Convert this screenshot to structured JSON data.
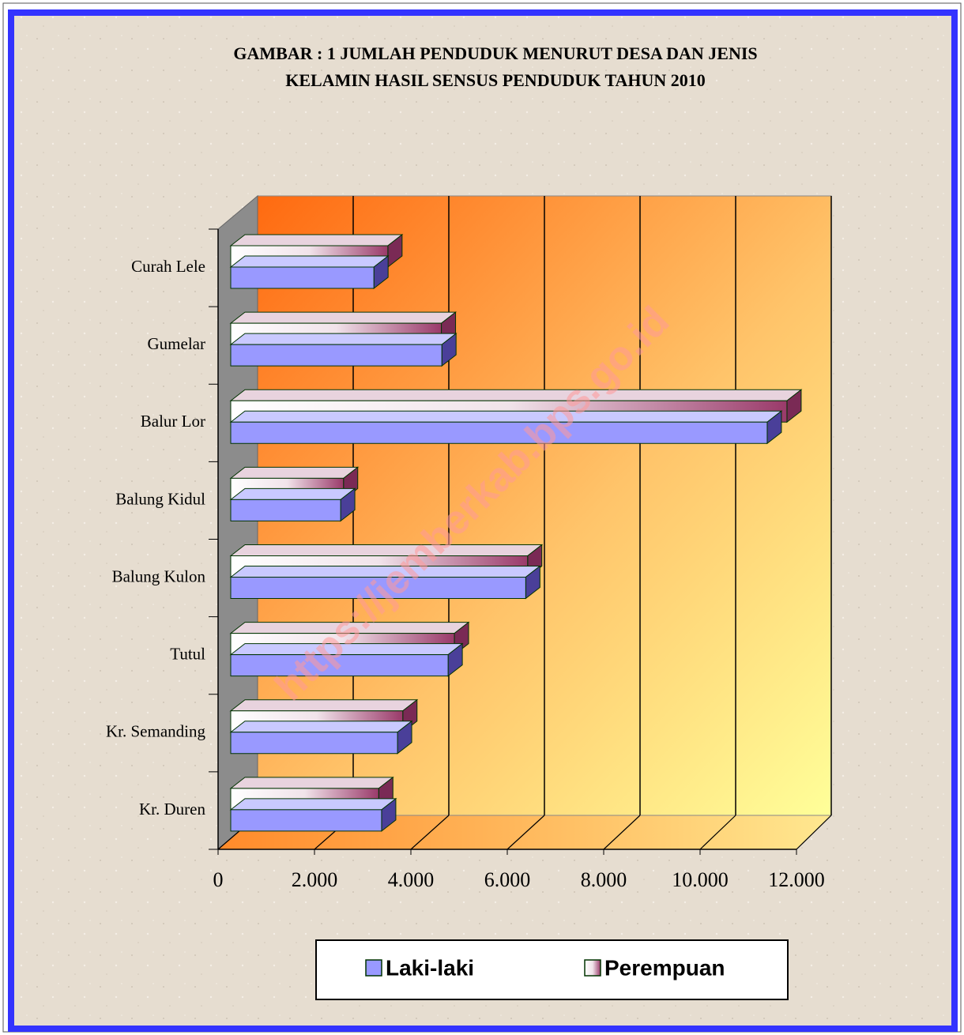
{
  "chart_data": {
    "type": "bar3d-horizontal",
    "title": [
      "GAMBAR : 1 JUMLAH PENDUDUK MENURUT DESA DAN JENIS",
      "KELAMIN HASIL SENSUS PENDUDUK TAHUN 2010"
    ],
    "watermark": "https://jemberkab.bps.go.id",
    "categories": [
      "Curah Lele",
      "Gumelar",
      "Balur Lor",
      "Balung Kidul",
      "Balung Kulon",
      "Tutul",
      "Kr. Semanding",
      "Kr. Duren"
    ],
    "series": [
      {
        "name": "Laki-laki",
        "color": "#9999ff",
        "values": [
          2970,
          4380,
          11130,
          2280,
          6120,
          4510,
          3460,
          3130
        ]
      },
      {
        "name": "Perempuan",
        "color": "#993366",
        "values": [
          3260,
          4370,
          11540,
          2340,
          6160,
          4640,
          3570,
          3070
        ]
      }
    ],
    "xlim": [
      0,
      12000
    ],
    "xticks": [
      0,
      {
        "value": 2000,
        "label": "2.000"
      },
      {
        "value": 4000,
        "label": "4.000"
      },
      {
        "value": 6000,
        "label": "6.000"
      },
      {
        "value": 8000,
        "label": "8.000"
      },
      {
        "value": 10000,
        "label": "10.000"
      },
      {
        "value": 12000,
        "label": "12.000"
      }
    ],
    "grid": true,
    "legend": "bottom"
  }
}
